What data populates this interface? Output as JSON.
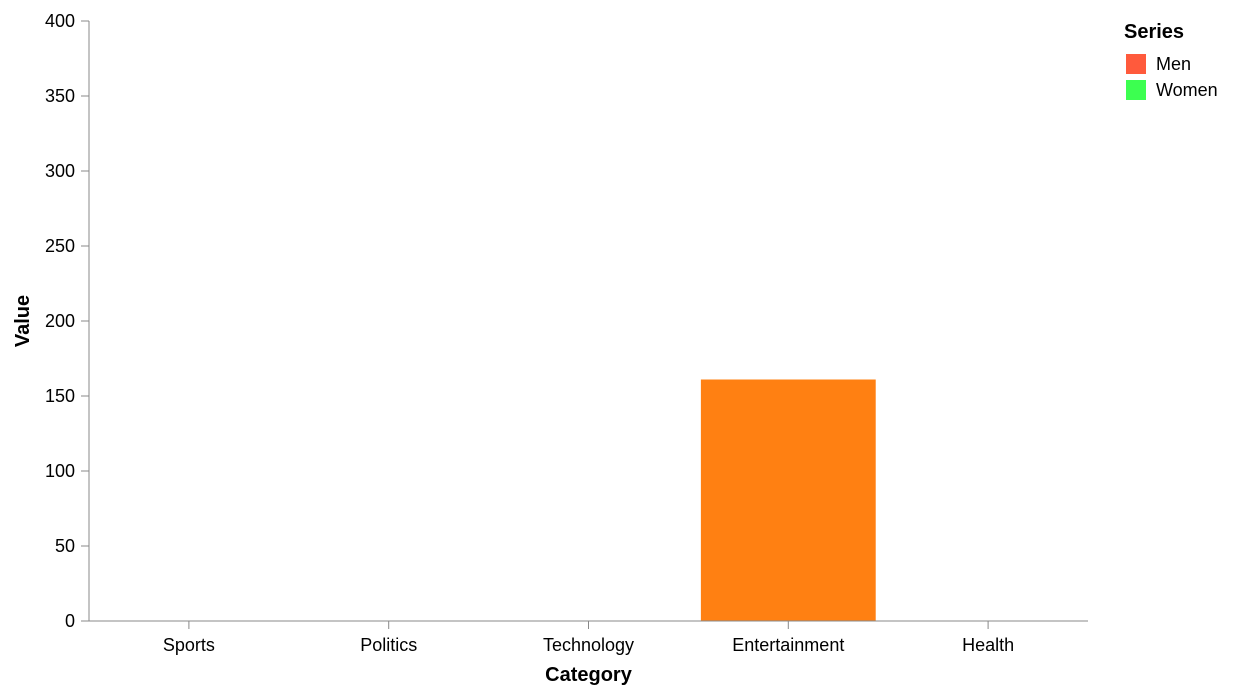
{
  "chart_data": {
    "type": "bar",
    "xlabel": "Category",
    "ylabel": "Value",
    "categories": [
      "Sports",
      "Politics",
      "Technology",
      "Entertainment",
      "Health"
    ],
    "ylim": [
      0,
      400
    ],
    "yticks": [
      0,
      50,
      100,
      150,
      200,
      250,
      300,
      350,
      400
    ],
    "grid": false,
    "legend_position": "top-right",
    "legend_title": "Series",
    "legend": [
      {
        "name": "Men",
        "color": "#ff5a3c"
      },
      {
        "name": "Women",
        "color": "#3cff50"
      }
    ],
    "bars": [
      {
        "category": "Entertainment",
        "value": 161,
        "color": "#ff8012"
      }
    ]
  }
}
